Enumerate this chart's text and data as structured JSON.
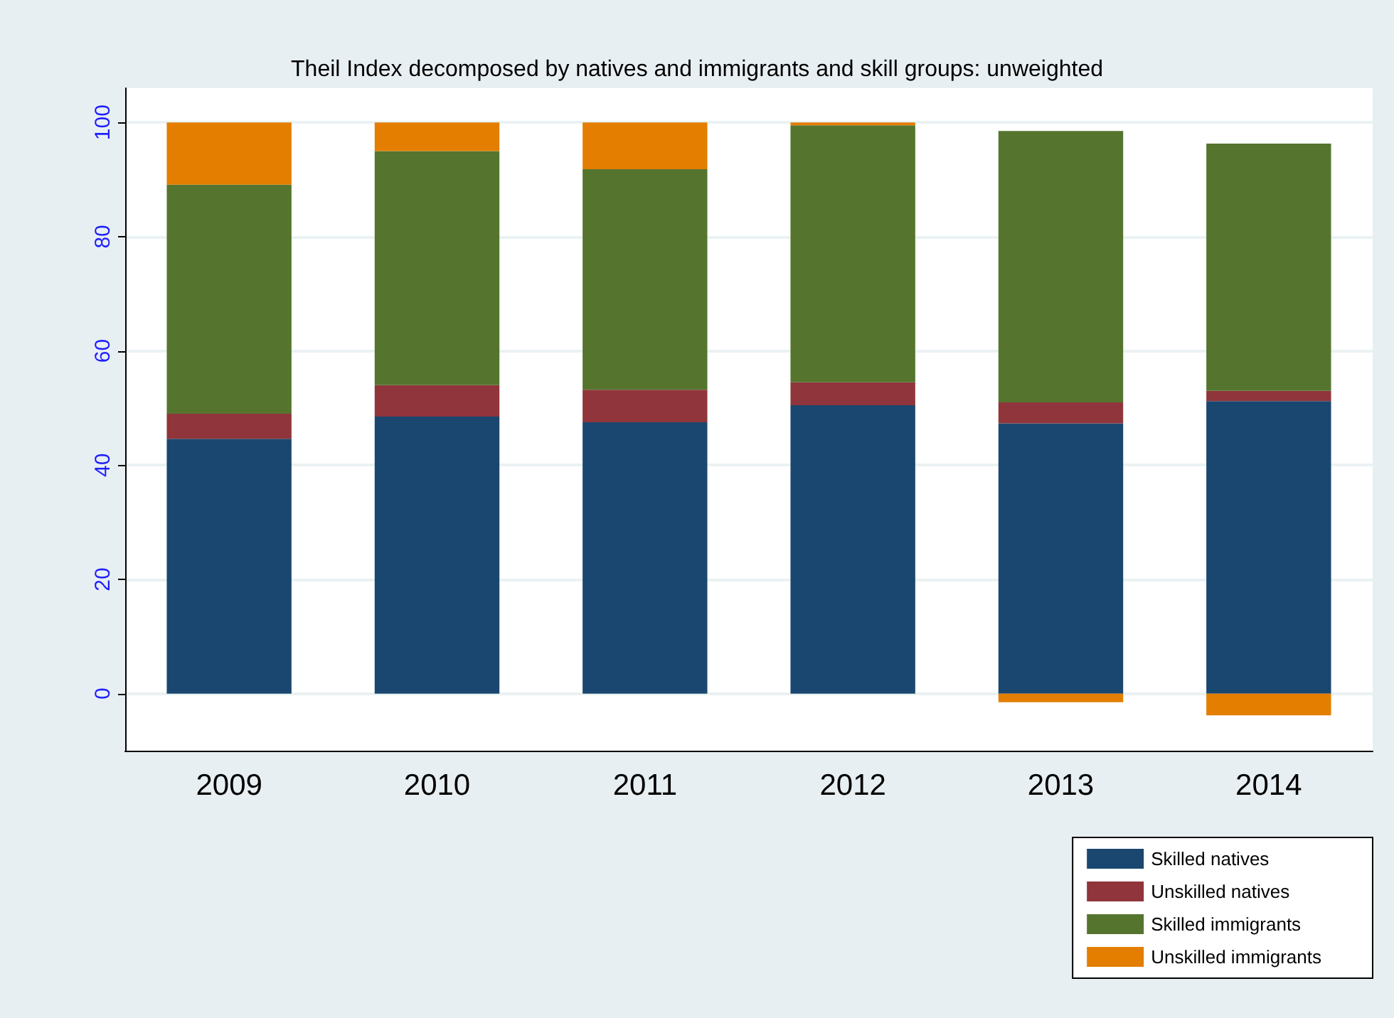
{
  "chart_data": {
    "type": "bar",
    "title": "Theil Index decomposed by natives and immigrants and skill groups: unweighted",
    "categories": [
      "2009",
      "2010",
      "2011",
      "2012",
      "2013",
      "2014"
    ],
    "stacked": true,
    "series": [
      {
        "name": "Skilled natives",
        "color": "#1a476f",
        "values": [
          44.6,
          48.5,
          47.5,
          50.5,
          47.3,
          51.2
        ]
      },
      {
        "name": "Unskilled natives",
        "color": "#90353b",
        "values": [
          4.4,
          5.5,
          5.7,
          4.0,
          3.7,
          1.8
        ]
      },
      {
        "name": "Skilled immigrants",
        "color": "#55752f",
        "values": [
          40.1,
          41.0,
          38.6,
          45.0,
          47.5,
          43.3
        ]
      },
      {
        "name": "Unskilled immigrants",
        "color": "#e37e00",
        "values": [
          10.9,
          5.0,
          8.2,
          0.5,
          -1.5,
          -3.8
        ]
      }
    ],
    "ylim": [
      -10,
      106
    ],
    "yticks": [
      0,
      20,
      40,
      60,
      80,
      100
    ],
    "grid": "y",
    "legend": "bottom right"
  }
}
